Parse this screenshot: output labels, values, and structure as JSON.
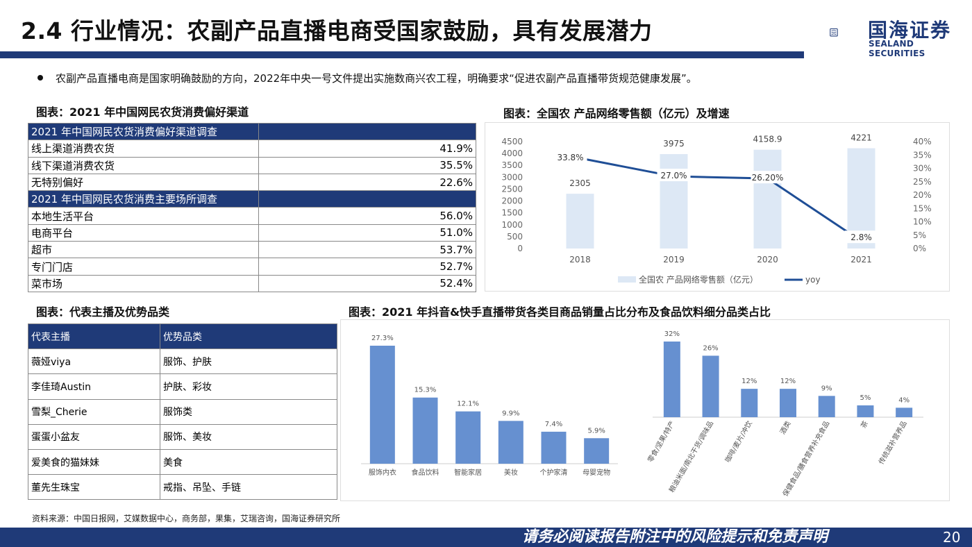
{
  "header": {
    "title": "2.4 行业情况：农副产品直播电商受国家鼓励，具有发展潜力",
    "logo_name": "国海证券",
    "logo_en": "SEALAND SECURITIES"
  },
  "bullet": "农副产品直播电商是国家明确鼓励的方向，2022年中央一号文件提出实施数商兴农工程，明确要求“促进农副产品直播带货规范健康发展”。",
  "table1": {
    "caption": "图表：2021 年中国网民农货消费偏好渠道",
    "sections": [
      {
        "header": "2021 年中国网民农货消费偏好渠道调查",
        "rows": [
          {
            "label": "线上渠道消费农货",
            "value": "41.9%"
          },
          {
            "label": "线下渠道消费农货",
            "value": "35.5%"
          },
          {
            "label": "无特别偏好",
            "value": "22.6%"
          }
        ]
      },
      {
        "header": "2021 年中国网民农货消费主要场所调查",
        "rows": [
          {
            "label": "本地生活平台",
            "value": "56.0%"
          },
          {
            "label": "电商平台",
            "value": "51.0%"
          },
          {
            "label": "超市",
            "value": "53.7%"
          },
          {
            "label": "专门门店",
            "value": "52.7%"
          },
          {
            "label": "菜市场",
            "value": "52.4%"
          }
        ]
      }
    ]
  },
  "table2": {
    "caption": "图表：代表主播及优势品类",
    "headers": [
      "代表主播",
      "优势品类"
    ],
    "rows": [
      [
        "薇娅viya",
        "服饰、护肤"
      ],
      [
        "李佳琦Austin",
        "护肤、彩妆"
      ],
      [
        "雪梨_Cherie",
        "服饰类"
      ],
      [
        "蛋蛋小盆友",
        "服饰、美妆"
      ],
      [
        "爱美食的猫妹妹",
        "美食"
      ],
      [
        "董先生珠宝",
        "戒指、吊坠、手链"
      ]
    ]
  },
  "chart1_caption": "图表：全国农 产品网络零售额（亿元）及增速",
  "chart2_caption": "图表：2021 年抖音&快手直播带货各类目商品销量占比分布及食品饮料细分品类占比",
  "chart_data": [
    {
      "type": "bar",
      "categories": [
        "2018",
        "2019",
        "2020",
        "2021"
      ],
      "series": [
        {
          "name": "全国农 产品网络零售额（亿元）",
          "type": "bar",
          "values": [
            2305,
            3975,
            4158.9,
            4221
          ],
          "labels": [
            "2305",
            "3975",
            "4158.9",
            "4221"
          ]
        },
        {
          "name": "yoy",
          "type": "line",
          "values": [
            33.8,
            27.0,
            26.2,
            2.8
          ],
          "labels": [
            "33.8%",
            "27.0%",
            "26.20%",
            "2.8%"
          ]
        }
      ],
      "ylim": [
        0,
        4500
      ],
      "yticks": [
        "0",
        "500",
        "1000",
        "1500",
        "2000",
        "2500",
        "3000",
        "3500",
        "4000",
        "4500"
      ],
      "y2lim": [
        0,
        40
      ],
      "y2ticks": [
        "0%",
        "5%",
        "10%",
        "15%",
        "20%",
        "25%",
        "30%",
        "35%",
        "40%"
      ],
      "legend": "bottom",
      "colors": {
        "bar": "#dde8f5",
        "line": "#1f4e96"
      }
    },
    {
      "type": "bar",
      "categories": [
        "服饰内衣",
        "食品饮料",
        "智能家居",
        "美妆",
        "个护家清",
        "母婴宠物"
      ],
      "values": [
        27.3,
        15.3,
        12.1,
        9.9,
        7.4,
        5.9
      ],
      "labels": [
        "27.3%",
        "15.3%",
        "12.1%",
        "9.9%",
        "7.4%",
        "5.9%"
      ],
      "color": "#6690d0"
    },
    {
      "type": "bar",
      "categories": [
        "零食/坚果/特产",
        "粮油米面/南北干货/调味品",
        "咖啡/麦片/冲饮",
        "酒类",
        "保健食品/膳食营养补充食品",
        "茶",
        "传统滋补营养品"
      ],
      "values": [
        32,
        26,
        12,
        12,
        9,
        5,
        4
      ],
      "labels": [
        "32%",
        "26%",
        "12%",
        "12%",
        "9%",
        "5%",
        "4%"
      ],
      "color": "#6690d0"
    }
  ],
  "footer": {
    "source": "资料来源：中国日报网，艾媒数据中心，商务部，果集，艾瑞咨询，国海证券研究所",
    "disclaimer": "请务必阅读报告附注中的风险提示和免责声明",
    "page": "20"
  },
  "colors": {
    "brand": "#1f3a78"
  }
}
